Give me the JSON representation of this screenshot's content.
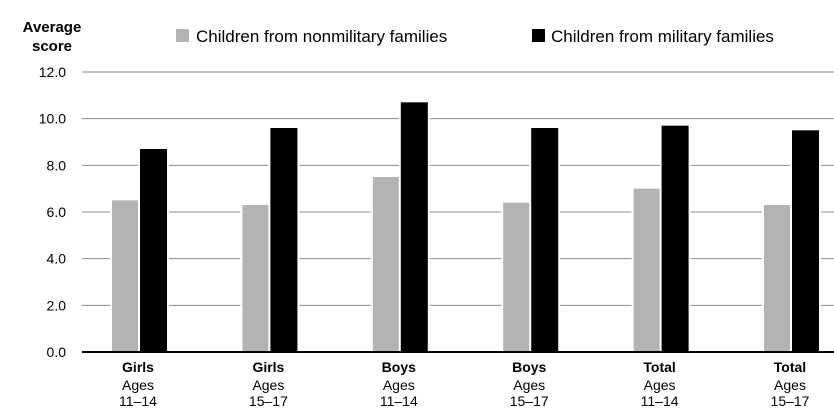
{
  "chart_data": {
    "type": "bar",
    "ylabel_lines": [
      "Average",
      "score"
    ],
    "ylim": [
      0,
      12
    ],
    "yticks": [
      "0.0",
      "2.0",
      "4.0",
      "6.0",
      "8.0",
      "10.0",
      "12.0"
    ],
    "grid": true,
    "legend_position": "top",
    "categories": [
      {
        "label": "Girls",
        "sub1": "Ages",
        "sub2": "11–14"
      },
      {
        "label": "Girls",
        "sub1": "Ages",
        "sub2": "15–17"
      },
      {
        "label": "Boys",
        "sub1": "Ages",
        "sub2": "11–14"
      },
      {
        "label": "Boys",
        "sub1": "Ages",
        "sub2": "15–17"
      },
      {
        "label": "Total",
        "sub1": "Ages",
        "sub2": "11–14"
      },
      {
        "label": "Total",
        "sub1": "Ages",
        "sub2": "15–17"
      }
    ],
    "series": [
      {
        "name": "Children from nonmilitary families",
        "color": "#b3b3b3",
        "values": [
          6.5,
          6.3,
          7.5,
          6.4,
          7.0,
          6.3
        ]
      },
      {
        "name": "Children from military families",
        "color": "#000000",
        "values": [
          8.7,
          9.6,
          10.7,
          9.6,
          9.7,
          9.5
        ]
      }
    ]
  }
}
